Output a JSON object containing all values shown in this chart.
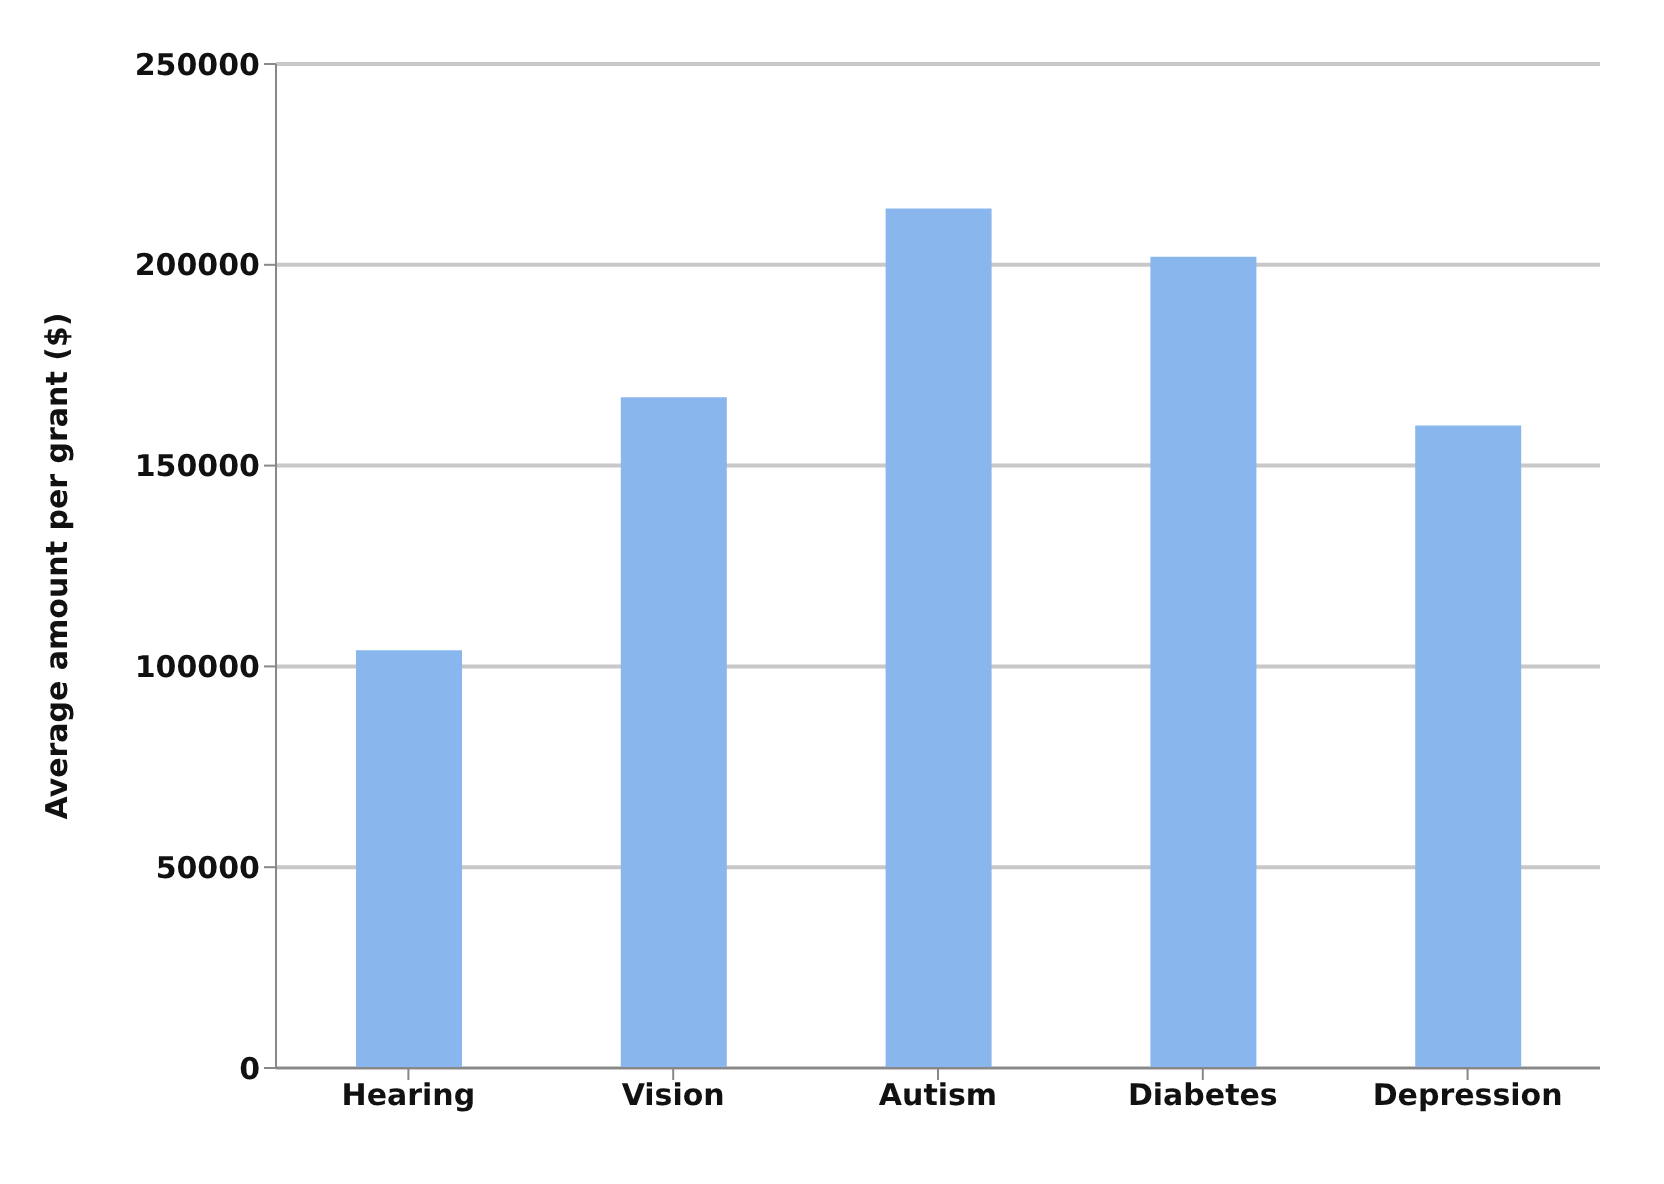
{
  "chart_data": {
    "type": "bar",
    "ylabel": "Average amount per grant ($)",
    "categories": [
      "Hearing",
      "Vision",
      "Autism",
      "Diabetes",
      "Depression"
    ],
    "values": [
      104000,
      167000,
      214000,
      202000,
      160000
    ],
    "color": "#8ab6ee",
    "ylim": [
      0,
      250000
    ],
    "yticks": [
      0,
      50000,
      100000,
      150000,
      200000,
      250000
    ],
    "grid": "y"
  }
}
